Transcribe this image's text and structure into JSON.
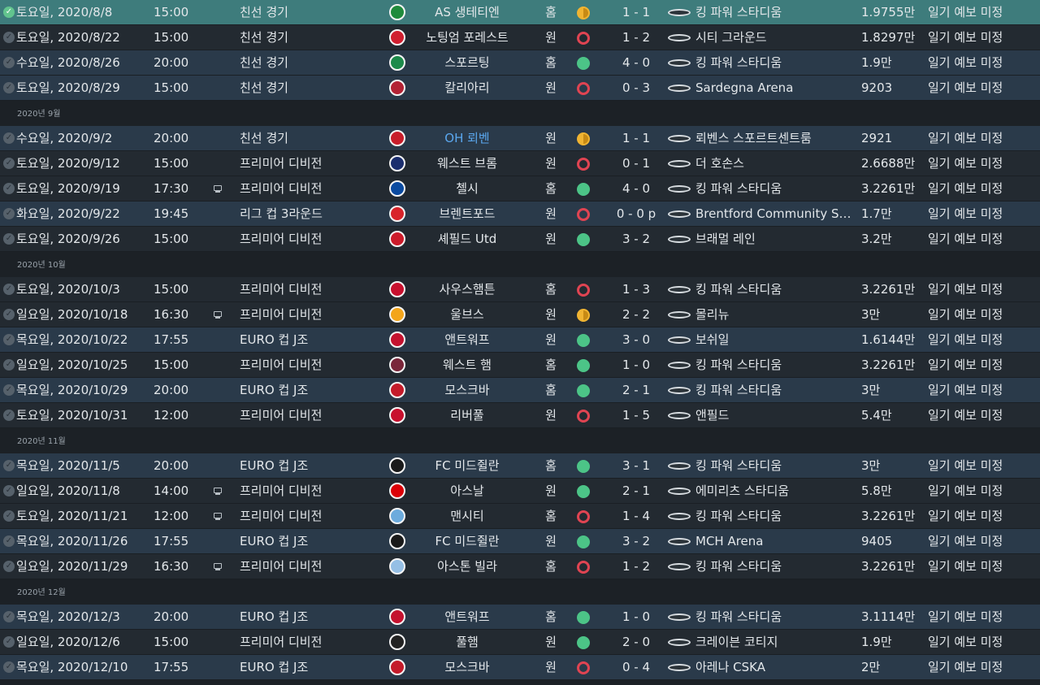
{
  "colors": {
    "win": "#4cc487",
    "loss": "#e04452",
    "draw": "#f0b432",
    "selected_row": "#3e7c7c",
    "link": "#5aa7ee"
  },
  "groups": [
    {
      "month": "",
      "rows": [
        {
          "date": "토요일, 2020/8/8",
          "time": "15:00",
          "tv": false,
          "comp": "친선 경기",
          "crest": "saint-etienne-crest",
          "crest_color": "#1f8b3c",
          "opponent": "AS 생테티엔",
          "venue": "홈",
          "result": "D",
          "score": "1 - 1",
          "stadium": "킹 파워 스타디움",
          "attendance": "1.9755만",
          "weather": "일기 예보 미정",
          "band": "sel"
        },
        {
          "date": "토요일, 2020/8/22",
          "time": "15:00",
          "tv": false,
          "comp": "친선 경기",
          "crest": "nottingham-forest-crest",
          "crest_color": "#d01f2f",
          "opponent": "노팅엄 포레스트",
          "venue": "원",
          "result": "L",
          "score": "1 - 2",
          "stadium": "시티 그라운드",
          "attendance": "1.8297만",
          "weather": "일기 예보 미정",
          "band": "b"
        },
        {
          "date": "수요일, 2020/8/26",
          "time": "20:00",
          "tv": false,
          "comp": "친선 경기",
          "crest": "sporting-crest",
          "crest_color": "#1c8a4a",
          "opponent": "스포르팅",
          "venue": "홈",
          "result": "W",
          "score": "4 - 0",
          "stadium": "킹 파워 스타디움",
          "attendance": "1.9만",
          "weather": "일기 예보 미정",
          "band": "a"
        },
        {
          "date": "토요일, 2020/8/29",
          "time": "15:00",
          "tv": false,
          "comp": "친선 경기",
          "crest": "cagliari-crest",
          "crest_color": "#b32234",
          "opponent": "칼리아리",
          "venue": "원",
          "result": "L",
          "score": "0 - 3",
          "stadium": "Sardegna Arena",
          "attendance": "9203",
          "weather": "일기 예보 미정",
          "band": "a"
        }
      ]
    },
    {
      "month": "2020년 9월",
      "rows": [
        {
          "date": "수요일, 2020/9/2",
          "time": "20:00",
          "tv": false,
          "comp": "친선 경기",
          "crest": "oh-leuven-crest",
          "crest_color": "#c81d2a",
          "opponent": "OH 뢰벤",
          "opponent_link": true,
          "venue": "원",
          "result": "D",
          "score": "1 - 1",
          "stadium": "뢰벤스 스포르트센트룸",
          "attendance": "2921",
          "weather": "일기 예보 미정",
          "band": "a"
        },
        {
          "date": "토요일, 2020/9/12",
          "time": "15:00",
          "tv": false,
          "comp": "프리미어 디비전",
          "crest": "west-brom-crest",
          "crest_color": "#1b2e6e",
          "opponent": "웨스트 브롬",
          "venue": "원",
          "result": "L",
          "score": "0 - 1",
          "stadium": "더 호손스",
          "attendance": "2.6688만",
          "weather": "일기 예보 미정",
          "band": "b"
        },
        {
          "date": "토요일, 2020/9/19",
          "time": "17:30",
          "tv": true,
          "comp": "프리미어 디비전",
          "crest": "chelsea-crest",
          "crest_color": "#0a4aa0",
          "opponent": "첼시",
          "venue": "홈",
          "result": "W",
          "score": "4 - 0",
          "stadium": "킹 파워 스타디움",
          "attendance": "3.2261만",
          "weather": "일기 예보 미정",
          "band": "b"
        },
        {
          "date": "화요일, 2020/9/22",
          "time": "19:45",
          "tv": false,
          "comp": "리그 컵 3라운드",
          "crest": "brentford-crest",
          "crest_color": "#d8232a",
          "opponent": "브렌트포드",
          "venue": "원",
          "result": "L",
          "score": "0 - 0 p",
          "stadium": "Brentford Community Stadium",
          "attendance": "1.7만",
          "weather": "일기 예보 미정",
          "band": "a"
        },
        {
          "date": "토요일, 2020/9/26",
          "time": "15:00",
          "tv": false,
          "comp": "프리미어 디비전",
          "crest": "sheffield-united-crest",
          "crest_color": "#cc1b2a",
          "opponent": "셰필드 Utd",
          "venue": "원",
          "result": "W",
          "score": "3 - 2",
          "stadium": "브래멀 레인",
          "attendance": "3.2만",
          "weather": "일기 예보 미정",
          "band": "b"
        }
      ]
    },
    {
      "month": "2020년 10월",
      "rows": [
        {
          "date": "토요일, 2020/10/3",
          "time": "15:00",
          "tv": false,
          "comp": "프리미어 디비전",
          "crest": "southampton-crest",
          "crest_color": "#c8102e",
          "opponent": "사우스햄튼",
          "venue": "홈",
          "result": "L",
          "score": "1 - 3",
          "stadium": "킹 파워 스타디움",
          "attendance": "3.2261만",
          "weather": "일기 예보 미정",
          "band": "b"
        },
        {
          "date": "일요일, 2020/10/18",
          "time": "16:30",
          "tv": true,
          "comp": "프리미어 디비전",
          "crest": "wolves-crest",
          "crest_color": "#f3a51b",
          "opponent": "울브스",
          "venue": "원",
          "result": "D",
          "score": "2 - 2",
          "stadium": "몰리뉴",
          "attendance": "3만",
          "weather": "일기 예보 미정",
          "band": "b"
        },
        {
          "date": "목요일, 2020/10/22",
          "time": "17:55",
          "tv": false,
          "comp": "EURO 컵 J조",
          "crest": "antwerp-crest",
          "crest_color": "#c4122f",
          "opponent": "앤트워프",
          "venue": "원",
          "result": "W",
          "score": "3 - 0",
          "stadium": "보쉬일",
          "attendance": "1.6144만",
          "weather": "일기 예보 미정",
          "band": "a"
        },
        {
          "date": "일요일, 2020/10/25",
          "time": "15:00",
          "tv": false,
          "comp": "프리미어 디비전",
          "crest": "west-ham-crest",
          "crest_color": "#7a263a",
          "opponent": "웨스트 햄",
          "venue": "홈",
          "result": "W",
          "score": "1 - 0",
          "stadium": "킹 파워 스타디움",
          "attendance": "3.2261만",
          "weather": "일기 예보 미정",
          "band": "b"
        },
        {
          "date": "목요일, 2020/10/29",
          "time": "20:00",
          "tv": false,
          "comp": "EURO 컵 J조",
          "crest": "cska-moscow-crest",
          "crest_color": "#c41b2a",
          "opponent": "모스크바",
          "venue": "홈",
          "result": "W",
          "score": "2 - 1",
          "stadium": "킹 파워 스타디움",
          "attendance": "3만",
          "weather": "일기 예보 미정",
          "band": "a"
        },
        {
          "date": "토요일, 2020/10/31",
          "time": "12:00",
          "tv": false,
          "comp": "프리미어 디비전",
          "crest": "liverpool-crest",
          "crest_color": "#c8102e",
          "opponent": "리버풀",
          "venue": "원",
          "result": "L",
          "score": "1 - 5",
          "stadium": "앤필드",
          "attendance": "5.4만",
          "weather": "일기 예보 미정",
          "band": "b"
        }
      ]
    },
    {
      "month": "2020년 11월",
      "rows": [
        {
          "date": "목요일, 2020/11/5",
          "time": "20:00",
          "tv": false,
          "comp": "EURO 컵 J조",
          "crest": "fc-midtjylland-crest",
          "crest_color": "#1a1a1a",
          "opponent": "FC 미드쥘란",
          "venue": "홈",
          "result": "W",
          "score": "3 - 1",
          "stadium": "킹 파워 스타디움",
          "attendance": "3만",
          "weather": "일기 예보 미정",
          "band": "a"
        },
        {
          "date": "일요일, 2020/11/8",
          "time": "14:00",
          "tv": true,
          "comp": "프리미어 디비전",
          "crest": "arsenal-crest",
          "crest_color": "#db0007",
          "opponent": "아스날",
          "venue": "원",
          "result": "W",
          "score": "2 - 1",
          "stadium": "에미리츠 스타디움",
          "attendance": "5.8만",
          "weather": "일기 예보 미정",
          "band": "b"
        },
        {
          "date": "토요일, 2020/11/21",
          "time": "12:00",
          "tv": true,
          "comp": "프리미어 디비전",
          "crest": "man-city-crest",
          "crest_color": "#6cabdd",
          "opponent": "맨시티",
          "venue": "홈",
          "result": "L",
          "score": "1 - 4",
          "stadium": "킹 파워 스타디움",
          "attendance": "3.2261만",
          "weather": "일기 예보 미정",
          "band": "b"
        },
        {
          "date": "목요일, 2020/11/26",
          "time": "17:55",
          "tv": false,
          "comp": "EURO 컵 J조",
          "crest": "fc-midtjylland-crest",
          "crest_color": "#1a1a1a",
          "opponent": "FC 미드쥘란",
          "venue": "원",
          "result": "W",
          "score": "3 - 2",
          "stadium": "MCH Arena",
          "attendance": "9405",
          "weather": "일기 예보 미정",
          "band": "a"
        },
        {
          "date": "일요일, 2020/11/29",
          "time": "16:30",
          "tv": true,
          "comp": "프리미어 디비전",
          "crest": "aston-villa-crest",
          "crest_color": "#95bfe5",
          "opponent": "아스톤 빌라",
          "venue": "홈",
          "result": "L",
          "score": "1 - 2",
          "stadium": "킹 파워 스타디움",
          "attendance": "3.2261만",
          "weather": "일기 예보 미정",
          "band": "b"
        }
      ]
    },
    {
      "month": "2020년 12월",
      "rows": [
        {
          "date": "목요일, 2020/12/3",
          "time": "20:00",
          "tv": false,
          "comp": "EURO 컵 J조",
          "crest": "antwerp-crest",
          "crest_color": "#c4122f",
          "opponent": "앤트워프",
          "venue": "홈",
          "result": "W",
          "score": "1 - 0",
          "stadium": "킹 파워 스타디움",
          "attendance": "3.1114만",
          "weather": "일기 예보 미정",
          "band": "a"
        },
        {
          "date": "일요일, 2020/12/6",
          "time": "15:00",
          "tv": false,
          "comp": "프리미어 디비전",
          "crest": "fulham-crest",
          "crest_color": "#222222",
          "opponent": "풀햄",
          "venue": "원",
          "result": "W",
          "score": "2 - 0",
          "stadium": "크레이븐 코티지",
          "attendance": "1.9만",
          "weather": "일기 예보 미정",
          "band": "b"
        },
        {
          "date": "목요일, 2020/12/10",
          "time": "17:55",
          "tv": false,
          "comp": "EURO 컵 J조",
          "crest": "cska-moscow-crest",
          "crest_color": "#c41b2a",
          "opponent": "모스크바",
          "venue": "원",
          "result": "L",
          "score": "0 - 4",
          "stadium": "아레나 CSKA",
          "attendance": "2만",
          "weather": "일기 예보 미정",
          "band": "a"
        }
      ]
    }
  ]
}
